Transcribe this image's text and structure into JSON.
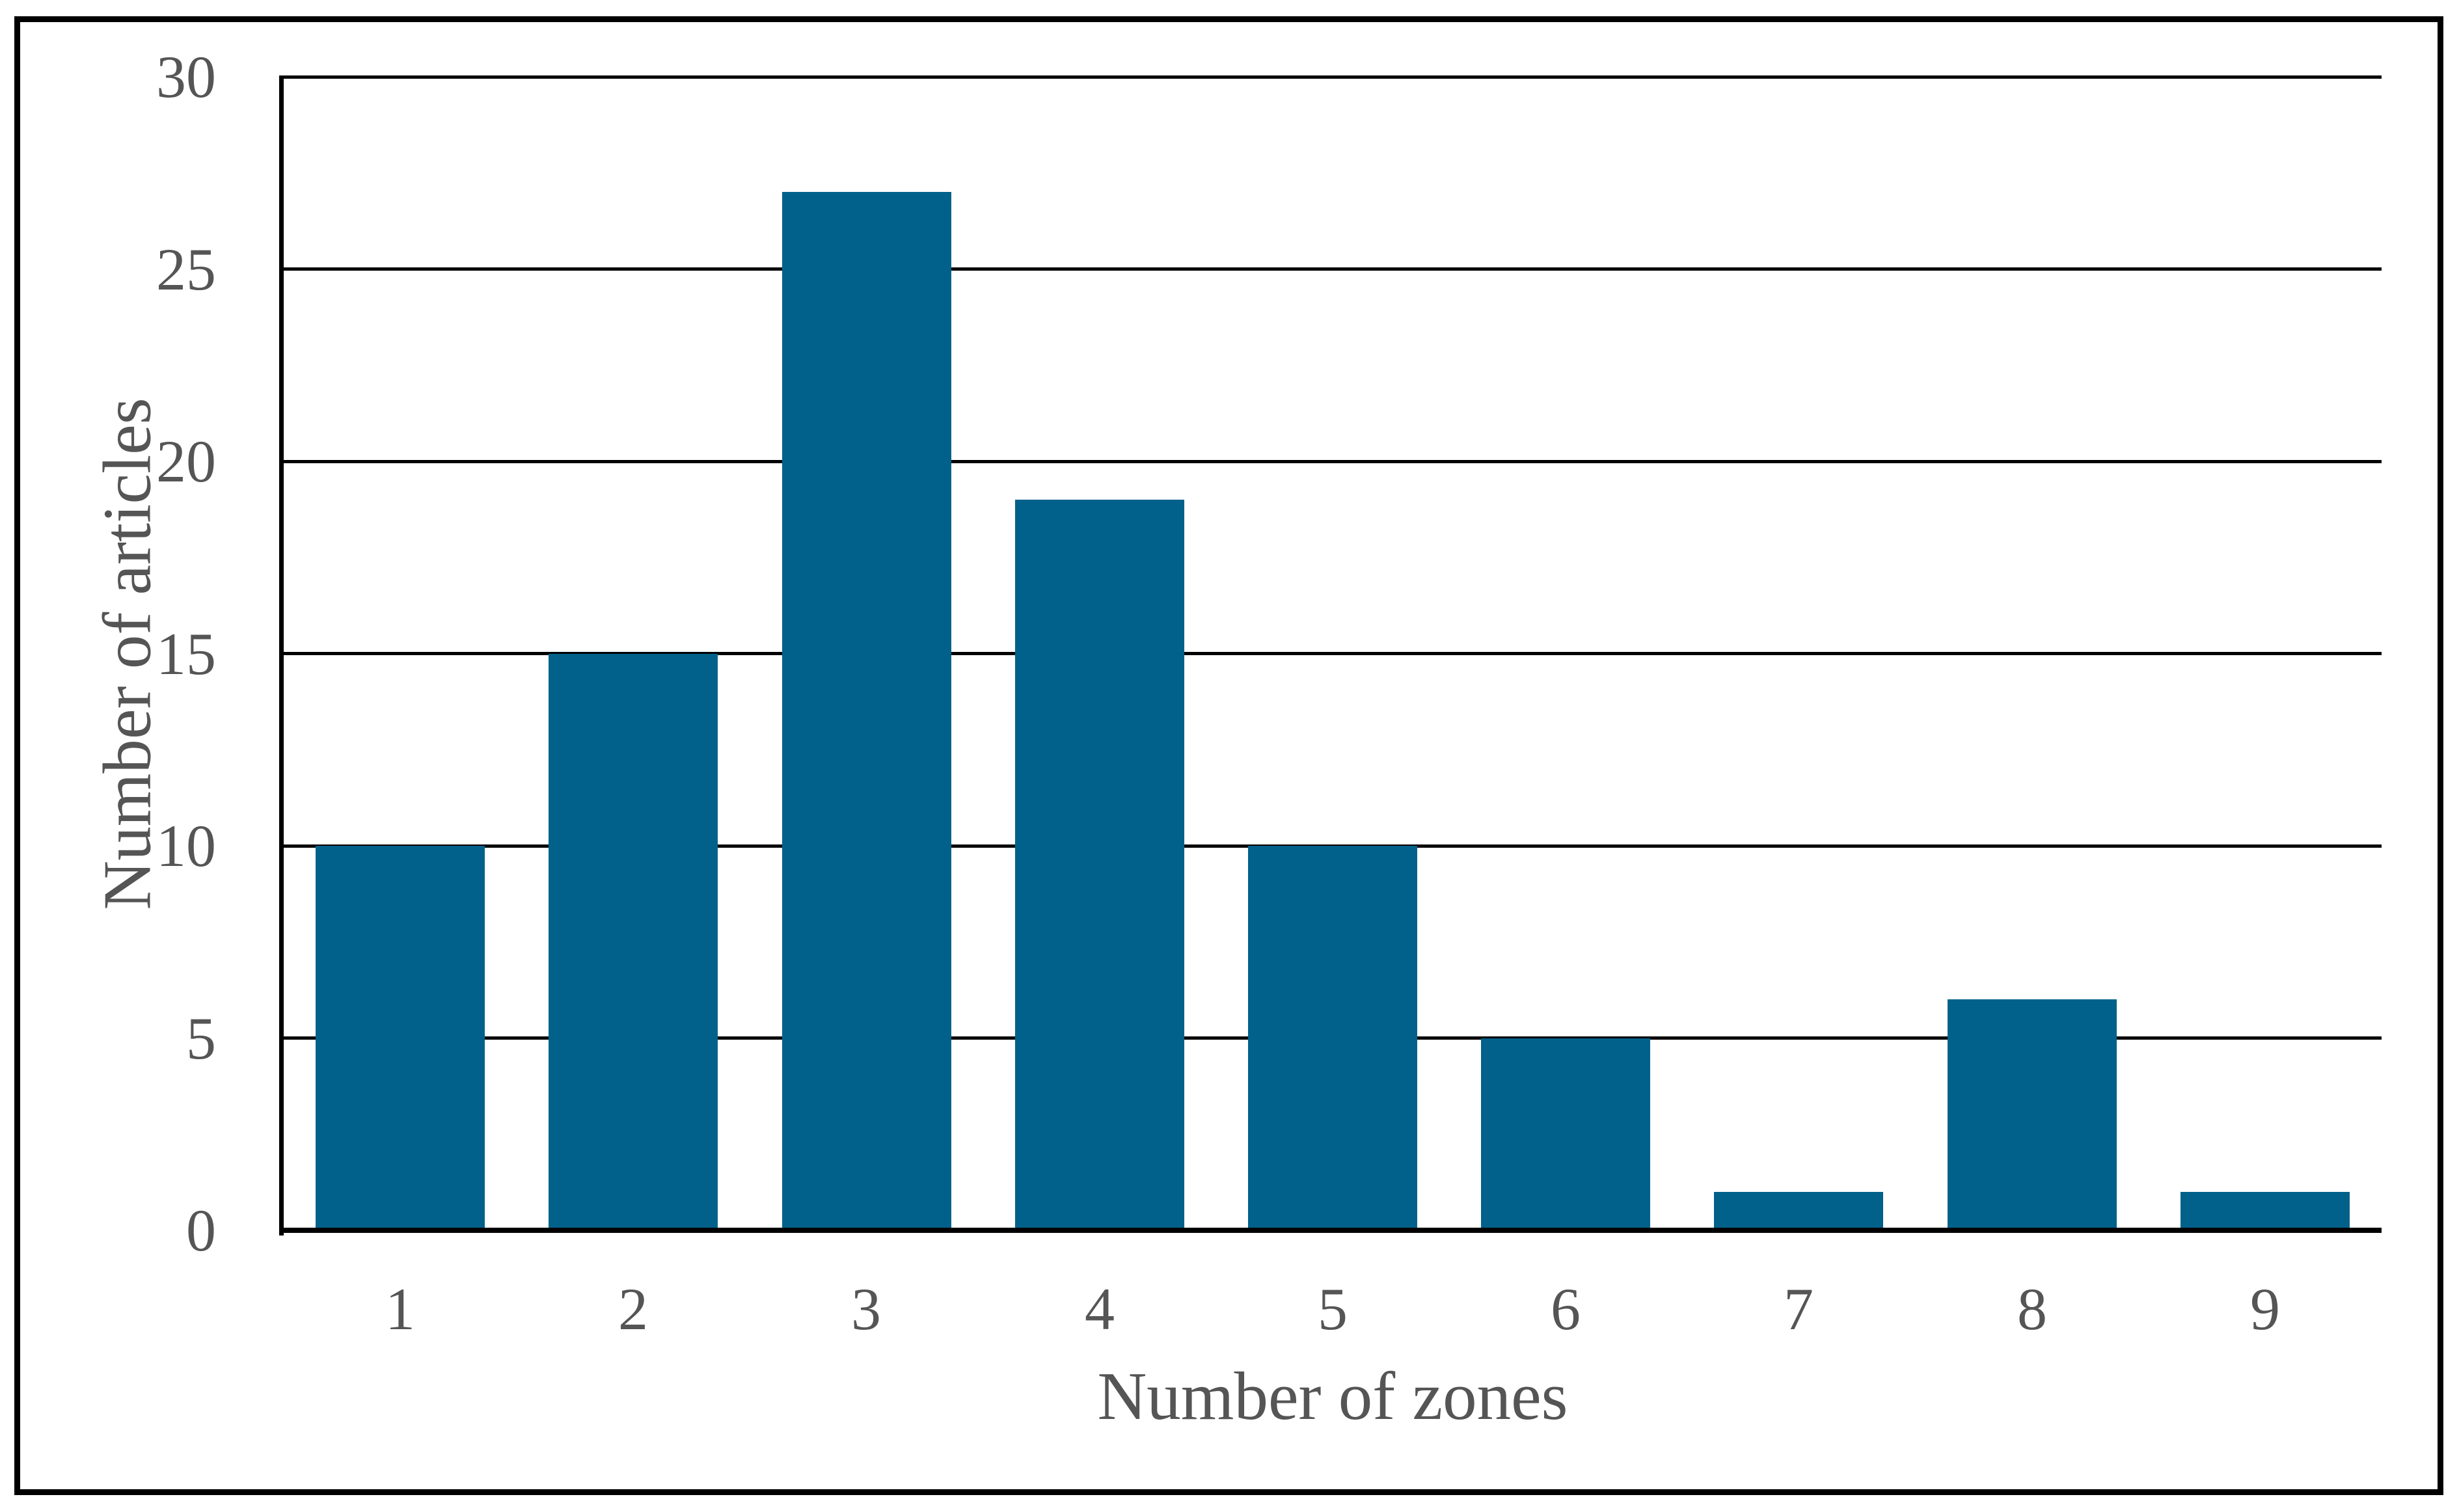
{
  "figure": {
    "background": "#ffffff",
    "border_color": "#000000"
  },
  "chart_data": {
    "type": "bar",
    "title": "",
    "categories": [
      "1",
      "2",
      "3",
      "4",
      "5",
      "6",
      "7",
      "8",
      "9"
    ],
    "values": [
      10,
      15,
      27,
      19,
      10,
      5,
      1,
      6,
      1
    ],
    "xlabel": "Number of zones",
    "ylabel": "Number of articles",
    "ylim": [
      0,
      30
    ],
    "yticks": [
      0,
      5,
      10,
      15,
      20,
      25,
      30
    ],
    "grid": "horizontal",
    "legend": "none",
    "bar_color": "#02618a",
    "grid_color": "#000000",
    "axis_color": "#000000",
    "tick_label_color": "#555555",
    "axis_title_color": "#555555"
  }
}
